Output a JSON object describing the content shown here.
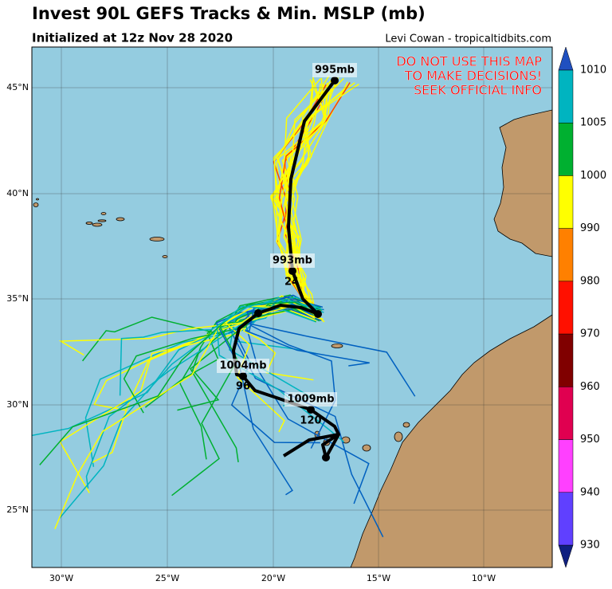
{
  "header": {
    "title": "Invest 90L GEFS Tracks & Min. MSLP (mb)",
    "subtitle": "Initialized at 12z Nov 28 2020",
    "credit": "Levi Cowan - tropicaltidbits.com"
  },
  "warning": [
    "DO NOT USE THIS MAP",
    "TO MAKE DECISIONS!",
    "SEEK OFFICIAL INFO"
  ],
  "map": {
    "lat_labels": [
      "45°N",
      "40°N",
      "35°N",
      "30°N",
      "25°N"
    ],
    "lon_labels": [
      "30°W",
      "25°W",
      "20°W",
      "15°W",
      "10°W"
    ],
    "pressure_labels": [
      "995mb",
      "993mb",
      "1004mb",
      "1009mb"
    ],
    "hour_labels": [
      "24",
      "96",
      "120"
    ]
  },
  "colorbar": {
    "labels": [
      "1010",
      "1005",
      "1000",
      "990",
      "980",
      "970",
      "960",
      "950",
      "940",
      "930"
    ]
  }
}
